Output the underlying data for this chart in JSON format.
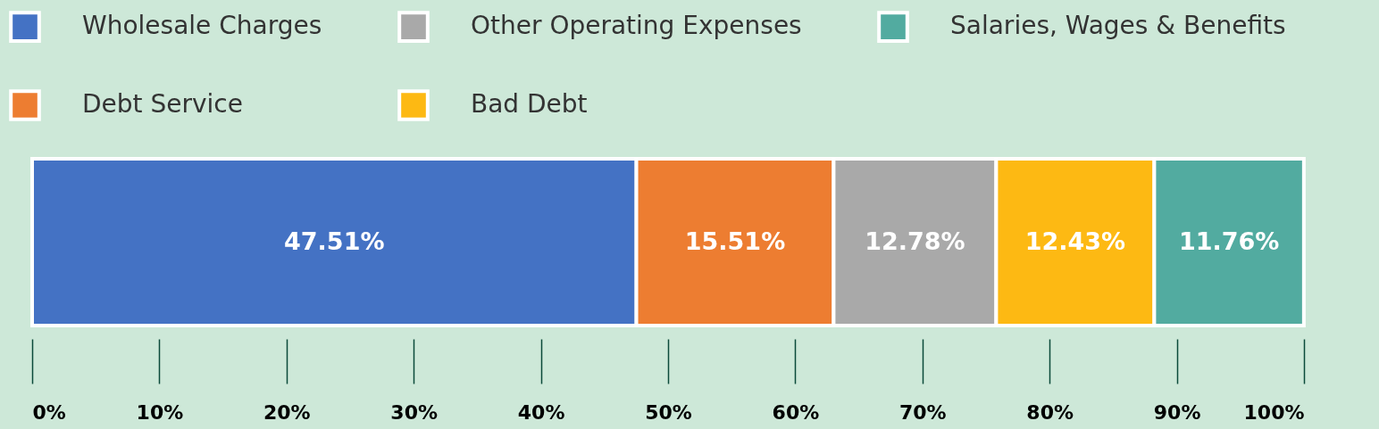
{
  "chart_data": {
    "type": "bar",
    "orientation": "horizontal",
    "stacked": true,
    "categories": [
      null
    ],
    "series": [
      {
        "name": "Wholesale Charges",
        "color": "#4472c4",
        "values": [
          47.51
        ],
        "value_labels": [
          "47.51%"
        ]
      },
      {
        "name": "Debt Service",
        "color": "#ed7d31",
        "values": [
          15.51
        ],
        "value_labels": [
          "15.51%"
        ]
      },
      {
        "name": "Other Operating Expenses",
        "color": "#a9a9a9",
        "values": [
          12.78
        ],
        "value_labels": [
          "12.78%"
        ]
      },
      {
        "name": "Bad Debt",
        "color": "#fdb913",
        "values": [
          12.43
        ],
        "value_labels": [
          "12.43%"
        ]
      },
      {
        "name": "Salaries, Wages & Benefits",
        "color": "#52aba0",
        "values": [
          11.76
        ],
        "value_labels": [
          "11.76%"
        ]
      }
    ],
    "xlim": [
      0,
      100
    ],
    "xticks": [
      {
        "value": 0,
        "label": "0%"
      },
      {
        "value": 10,
        "label": "10%"
      },
      {
        "value": 20,
        "label": "20%"
      },
      {
        "value": 30,
        "label": "30%"
      },
      {
        "value": 40,
        "label": "40%"
      },
      {
        "value": 50,
        "label": "50%"
      },
      {
        "value": 60,
        "label": "60%"
      },
      {
        "value": 70,
        "label": "70%"
      },
      {
        "value": 80,
        "label": "80%"
      },
      {
        "value": 90,
        "label": "90%"
      },
      {
        "value": 100,
        "label": "100%"
      }
    ],
    "legend": "top left",
    "tick_labels": "x"
  }
}
